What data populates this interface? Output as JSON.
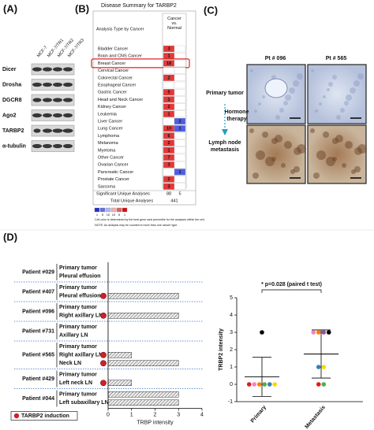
{
  "panel_labels": [
    "(A)",
    "(B)",
    "(C)",
    "(D)"
  ],
  "blot": {
    "lanes": [
      "MCF-7",
      "MCF-7/TR1",
      "MCF-7/TR2",
      "MCF-7/TR3"
    ],
    "proteins": [
      "Dicer",
      "Drosha",
      "DGCR8",
      "Ago2",
      "TARBP2",
      "α-tubulin"
    ]
  },
  "oncomine": {
    "title": "Disease Summary for TARBP2",
    "row_header": "Analysis Type by Cancer",
    "column_header": "Cancer vs. Normal",
    "rows": [
      {
        "name": "Bladder Cancer",
        "up": 3,
        "down": null
      },
      {
        "name": "Brain and CNS Cancer",
        "up": 1,
        "down": null
      },
      {
        "name": "Breast Cancer",
        "up": 18,
        "down": null,
        "highlight": true
      },
      {
        "name": "Cervical Cancer",
        "up": null,
        "down": null
      },
      {
        "name": "Colorectal Cancer",
        "up": 2,
        "down": null
      },
      {
        "name": "Esophageal Cancer",
        "up": null,
        "down": null
      },
      {
        "name": "Gastric Cancer",
        "up": 5,
        "down": null
      },
      {
        "name": "Head and Neck Cancer",
        "up": 1,
        "down": null
      },
      {
        "name": "Kidney Cancer",
        "up": 2,
        "down": null
      },
      {
        "name": "Leukemia",
        "up": 1,
        "down": null
      },
      {
        "name": "Liver Cancer",
        "up": null,
        "down": 2
      },
      {
        "name": "Lung Cancer",
        "up": 10,
        "down": 1
      },
      {
        "name": "Lymphoma",
        "up": 6,
        "down": null
      },
      {
        "name": "Melanoma",
        "up": 2,
        "down": null
      },
      {
        "name": "Myeloma",
        "up": 1,
        "down": null
      },
      {
        "name": "Other Cancer",
        "up": 7,
        "down": null
      },
      {
        "name": "Ovarian Cancer",
        "up": 3,
        "down": null
      },
      {
        "name": "Pancreatic Cancer",
        "up": null,
        "down": 1
      },
      {
        "name": "Prostate Cancer",
        "up": 2,
        "down": null
      },
      {
        "name": "Sarcoma",
        "up": 3,
        "down": null
      }
    ],
    "significant_label": "Significant Unique Analyses",
    "significant": [
      88,
      5
    ],
    "total_label": "Total Unique Analyses",
    "total": 441,
    "scale": [
      1,
      5,
      10,
      10,
      5,
      1
    ],
    "scale_colors": [
      "#2030c0",
      "#6070e0",
      "#b0b8f0",
      "#f0b0b0",
      "#e06060",
      "#d01010"
    ],
    "scale_note": "Cell color is determined by the best gene rank percentile for the analyses within the cell.",
    "note": "NOTE: An analysis may be counted in more than one cancer type."
  },
  "ihc": {
    "patients": [
      "Pt # 096",
      "Pt # 565"
    ],
    "row_labels": [
      "Primary tumor",
      "Lymph node metastasis"
    ],
    "arrow_label": "Hormone therapy"
  },
  "chart_data": [
    {
      "type": "bar",
      "orientation": "horizontal",
      "xlabel": "TRBP intensity",
      "xlim": [
        0,
        4
      ],
      "xticks": [
        0,
        1,
        2,
        3,
        4
      ],
      "color": "#bdbdbd",
      "induction_color": "#d0202a",
      "legend": "TARBP2 induction",
      "groups": [
        {
          "name": "Patient #029",
          "rows": [
            {
              "label": "Primary tumor",
              "value": 0
            },
            {
              "label": "Pleural effusion",
              "value": 0
            }
          ]
        },
        {
          "name": "Patient #407",
          "rows": [
            {
              "label": "Primary tumor",
              "value": 0
            },
            {
              "label": "Pleural effusion",
              "value": 3,
              "induction": true
            }
          ]
        },
        {
          "name": "Patient #096",
          "rows": [
            {
              "label": "Primary tumor",
              "value": 0
            },
            {
              "label": "Right axillary LN",
              "value": 3,
              "induction": true
            }
          ]
        },
        {
          "name": "Patient #731",
          "rows": [
            {
              "label": "Primary tumor",
              "value": 0
            },
            {
              "label": "Axillary LN",
              "value": 0
            }
          ]
        },
        {
          "name": "Patient #565",
          "rows": [
            {
              "label": "Primary tumor",
              "value": 0
            },
            {
              "label": "Right axillary LN",
              "value": 1,
              "induction": true
            },
            {
              "label": "Neck LN",
              "value": 3,
              "induction": true
            }
          ]
        },
        {
          "name": "Patient #429",
          "rows": [
            {
              "label": "Primary tumor",
              "value": 0
            },
            {
              "label": "Left neck LN",
              "value": 1,
              "induction": true
            }
          ]
        },
        {
          "name": "Patient #044",
          "rows": [
            {
              "label": "Primary tumor",
              "value": 3
            },
            {
              "label": "Left subaxillary LN",
              "value": 3
            }
          ]
        }
      ]
    },
    {
      "type": "scatter",
      "ylabel": "TRBP2 intensity",
      "annotation": "* p=0.028 (paired t test)",
      "categories": [
        "Primary",
        "Metastasis"
      ],
      "ylim": [
        -1,
        5
      ],
      "yticks": [
        -1,
        0,
        1,
        2,
        3,
        4,
        5
      ],
      "points": [
        {
          "category": 0,
          "value": 0,
          "color": "#e41a1c"
        },
        {
          "category": 0,
          "value": 0,
          "color": "#f781bf"
        },
        {
          "category": 0,
          "value": 0,
          "color": "#ff7f00"
        },
        {
          "category": 0,
          "value": 0,
          "color": "#4daf4a"
        },
        {
          "category": 0,
          "value": 0,
          "color": "#377eb8"
        },
        {
          "category": 0,
          "value": 0,
          "color": "#ffd700"
        },
        {
          "category": 0,
          "value": 3,
          "color": "#000000"
        },
        {
          "category": 1,
          "value": 0,
          "color": "#e41a1c"
        },
        {
          "category": 1,
          "value": 3,
          "color": "#f781bf"
        },
        {
          "category": 1,
          "value": 3,
          "color": "#ff7f00"
        },
        {
          "category": 1,
          "value": 0,
          "color": "#4daf4a"
        },
        {
          "category": 1,
          "value": 1,
          "color": "#377eb8"
        },
        {
          "category": 1,
          "value": 3,
          "color": "#984ea3"
        },
        {
          "category": 1,
          "value": 1,
          "color": "#ffd700"
        },
        {
          "category": 1,
          "value": 3,
          "color": "#000000"
        }
      ],
      "mean": [
        0.43,
        1.75
      ],
      "sd": [
        1.13,
        1.39
      ]
    }
  ]
}
